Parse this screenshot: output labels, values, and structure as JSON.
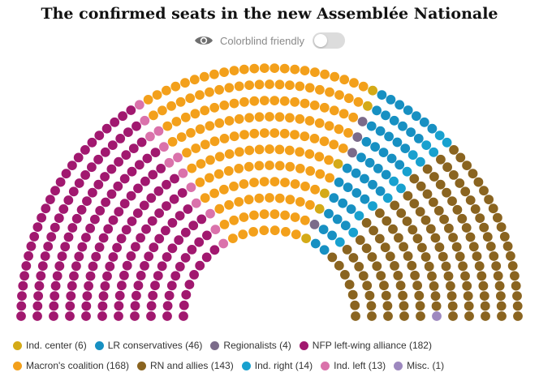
{
  "header": {
    "title": "The confirmed seats in the new Assemblée Nationale"
  },
  "toggle": {
    "label": "Colorblind friendly",
    "on": false,
    "icon": "eye-icon"
  },
  "chart_data": {
    "type": "parliament-hemicycle",
    "total_seats": 577,
    "series": [
      {
        "name": "Ind. center",
        "label": "Ind. center (6)",
        "seats": 6,
        "color": "#d4aa17"
      },
      {
        "name": "LR conservatives",
        "label": "LR conservatives (46)",
        "seats": 46,
        "color": "#1790c2"
      },
      {
        "name": "Regionalists",
        "label": "Regionalists (4)",
        "seats": 4,
        "color": "#7b6b8a"
      },
      {
        "name": "NFP left-wing alliance",
        "label": "NFP left-wing alliance (182)",
        "seats": 182,
        "color": "#a1186f"
      },
      {
        "name": "Macron's coalition",
        "label": "Macron's coalition (168)",
        "seats": 168,
        "color": "#f3a01b"
      },
      {
        "name": "RN and allies",
        "label": "RN and allies (143)",
        "seats": 143,
        "color": "#8a6420"
      },
      {
        "name": "Ind. right",
        "label": "Ind. right (14)",
        "seats": 14,
        "color": "#18a1cf"
      },
      {
        "name": "Ind. left",
        "label": "Ind. left (13)",
        "seats": 13,
        "color": "#da72ab"
      },
      {
        "name": "Misc.",
        "label": "Misc. (1)",
        "seats": 1,
        "color": "#9d88bf"
      }
    ],
    "seat_order": [
      "NFP left-wing alliance",
      "Ind. left",
      "Macron's coalition",
      "Ind. center",
      "Regionalists",
      "LR conservatives",
      "Ind. right",
      "RN and allies",
      "Misc."
    ],
    "legend_position": "bottom"
  }
}
